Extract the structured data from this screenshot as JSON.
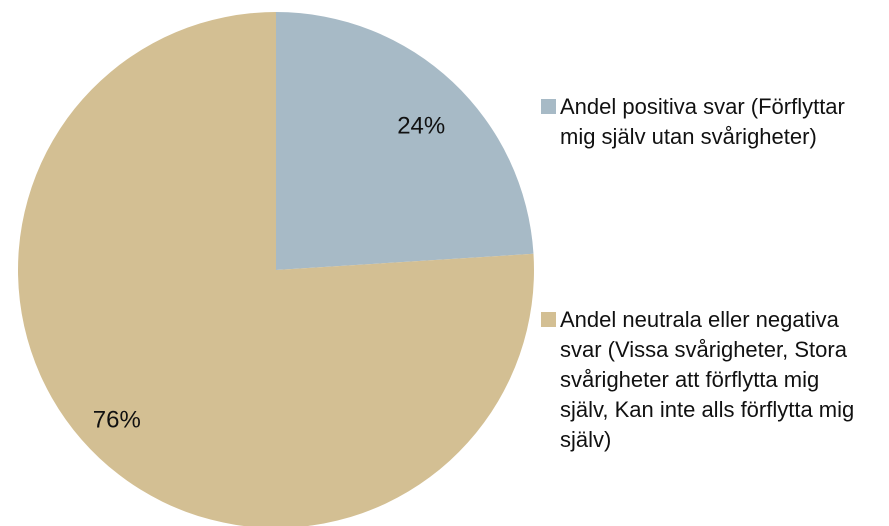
{
  "chart_data": {
    "type": "pie",
    "categories": [
      "Andel positiva svar (Förflyttar mig själv utan svårigheter)",
      "Andel neutrala eller negativa svar (Vissa svårigheter,  Stora svårigheter att förflytta mig själv, Kan inte alls förflytta mig själv)"
    ],
    "values": [
      24,
      76
    ],
    "value_labels": [
      "24%",
      "76%"
    ],
    "colors": [
      "#a7bac6",
      "#d3bf93"
    ]
  }
}
